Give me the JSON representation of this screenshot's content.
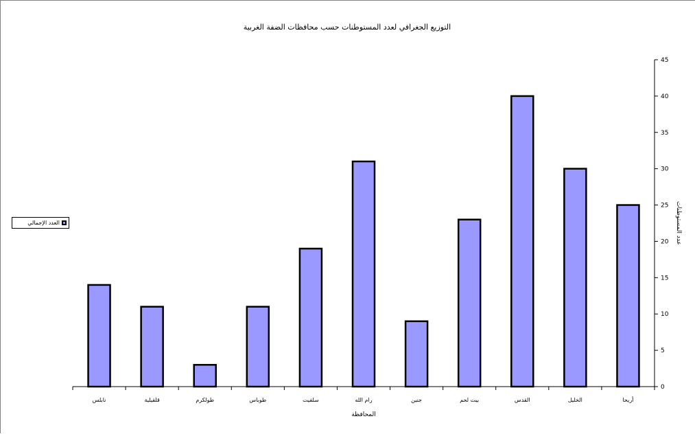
{
  "chart_data": {
    "type": "bar",
    "title": "التوزيع الجغرافي لعدد المستوطنات حسب محافظات الضفة الغربية",
    "xlabel": "المحافظة",
    "ylabel": "عدد المستوطنات",
    "categories": [
      "أريحا",
      "الخليل",
      "القدس",
      "بيت لحم",
      "جنين",
      "رام الله",
      "سلفيت",
      "طوباس",
      "طولكرم",
      "قلقيلية",
      "نابلس"
    ],
    "series": [
      {
        "name": "العدد الإجمالي",
        "values": [
          25,
          30,
          40,
          23,
          9,
          31,
          19,
          11,
          3,
          11,
          14
        ]
      }
    ],
    "ylim": [
      0,
      45
    ],
    "yticks": [
      0,
      5,
      10,
      15,
      20,
      25,
      30,
      35,
      40,
      45
    ],
    "grid": false,
    "legend_position": "left",
    "colors": {
      "bar": "#9999ff",
      "bar_edge": "#000000"
    }
  }
}
